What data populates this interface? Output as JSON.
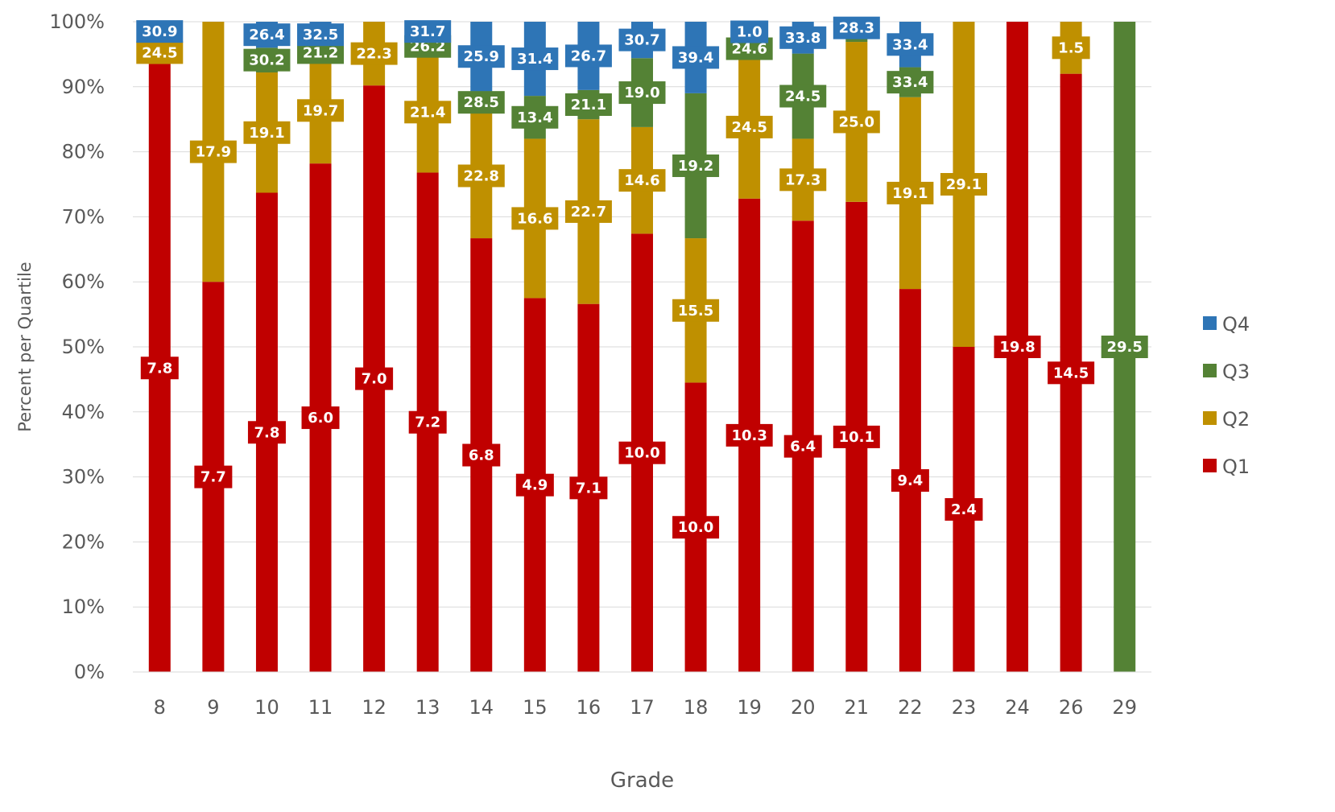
{
  "chart_data": {
    "type": "bar",
    "stacked": true,
    "normalized": true,
    "xlabel": "Grade",
    "ylabel": "Percent per Quartile",
    "ylim": [
      0,
      100
    ],
    "yticks": [
      "0%",
      "10%",
      "20%",
      "30%",
      "40%",
      "50%",
      "60%",
      "70%",
      "80%",
      "90%",
      "100%"
    ],
    "grid": true,
    "legend": "right",
    "categories": [
      "8",
      "9",
      "10",
      "11",
      "12",
      "13",
      "14",
      "15",
      "16",
      "17",
      "18",
      "19",
      "20",
      "21",
      "22",
      "23",
      "24",
      "26",
      "29"
    ],
    "series": [
      {
        "name": "Q1",
        "color": "#C00000",
        "pct": [
          93.5,
          60,
          73.7,
          78.2,
          90.2,
          76.8,
          66.7,
          57.5,
          56.6,
          67.4,
          44.5,
          72.8,
          69.4,
          72.3,
          58.9,
          50,
          100,
          92,
          0
        ],
        "labels": [
          "7.8",
          "7.7",
          "7.8",
          "6.0",
          "7.0",
          "7.2",
          "6.8",
          "4.9",
          "7.1",
          "10.0",
          "10.0",
          "10.3",
          "6.4",
          "10.1",
          "9.4",
          "2.4",
          "19.8",
          "14.5",
          ""
        ]
      },
      {
        "name": "Q2",
        "color": "#BF9000",
        "pct": [
          3.5,
          40,
          18.5,
          16.3,
          9.8,
          18.6,
          19.2,
          24.5,
          28.4,
          16.4,
          22.2,
          22,
          12.6,
          24.6,
          29.5,
          50,
          0,
          8,
          0
        ],
        "labels": [
          "24.5",
          "17.9",
          "19.1",
          "19.7",
          "22.3",
          "21.4",
          "22.8",
          "16.6",
          "22.7",
          "14.6",
          "15.5",
          "24.5",
          "17.3",
          "25.0",
          "19.1",
          "29.1",
          "",
          "1.5",
          ""
        ]
      },
      {
        "name": "Q3",
        "color": "#548235",
        "pct": [
          0,
          0,
          3.8,
          1.5,
          0,
          1.6,
          3.4,
          6.6,
          4.5,
          10.6,
          22.3,
          2.1,
          13.1,
          0.6,
          4.6,
          0,
          0,
          0,
          100
        ],
        "labels": [
          "",
          "",
          "30.2",
          "21.2",
          "",
          "26.2",
          "28.5",
          "13.4",
          "21.1",
          "19.0",
          "19.2",
          "24.6",
          "24.5",
          "",
          "33.4",
          "",
          "",
          "",
          "29.5"
        ]
      },
      {
        "name": "Q4",
        "color": "#2E75B6",
        "pct": [
          3,
          0,
          4,
          4,
          0,
          3,
          10.7,
          11.4,
          10.5,
          5.6,
          11,
          3.1,
          4.9,
          3.1,
          7,
          0,
          0,
          0,
          0
        ],
        "labels": [
          "30.9",
          "",
          "26.4",
          "32.5",
          "",
          "31.7",
          "25.9",
          "31.4",
          "26.7",
          "30.7",
          "39.4",
          "1.0",
          "33.8",
          "28.3",
          "33.4",
          "",
          "",
          "",
          ""
        ]
      }
    ],
    "legend_entries": [
      "Q4",
      "Q3",
      "Q2",
      "Q1"
    ]
  }
}
